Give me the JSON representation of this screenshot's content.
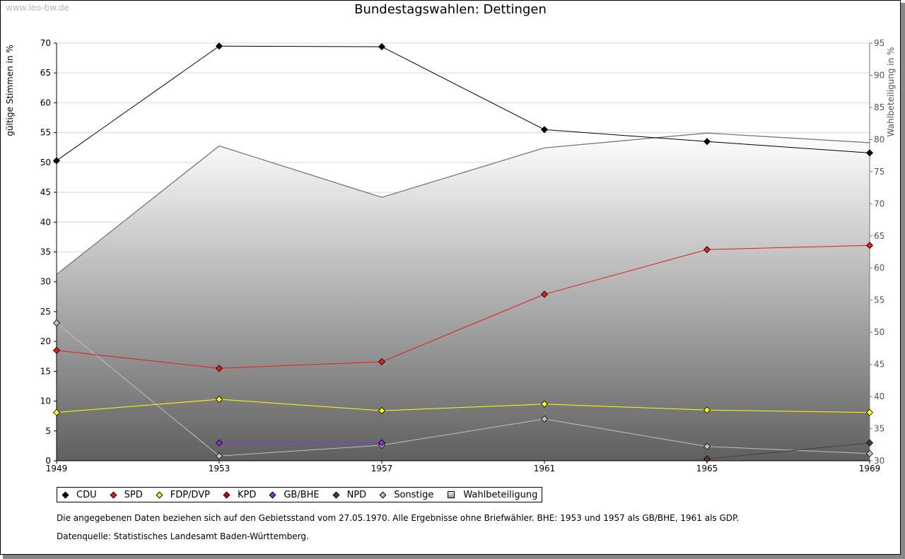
{
  "watermark": "www.leo-bw.de",
  "chart_data": {
    "type": "line",
    "title": "Bundestagswahlen: Dettingen",
    "ylabel": "gültige Stimmen in %",
    "y2label": "Wahlbeteiligung in %",
    "categories": [
      "1949",
      "1953",
      "1957",
      "1961",
      "1965",
      "1969"
    ],
    "ylim": [
      0,
      70
    ],
    "yticks": [
      0,
      5,
      10,
      15,
      20,
      25,
      30,
      35,
      40,
      45,
      50,
      55,
      60,
      65,
      70
    ],
    "y2lim": [
      30,
      95
    ],
    "y2ticks": [
      30,
      35,
      40,
      45,
      50,
      55,
      60,
      65,
      70,
      75,
      80,
      85,
      90,
      95
    ],
    "series": [
      {
        "name": "CDU",
        "color": "#000000",
        "values": [
          50.3,
          69.5,
          69.4,
          55.5,
          53.5,
          51.6
        ]
      },
      {
        "name": "SPD",
        "color": "#e31b1b",
        "values": [
          18.5,
          15.5,
          16.6,
          27.9,
          35.4,
          36.1
        ]
      },
      {
        "name": "FDP/DVP",
        "color": "#ffff00",
        "values": [
          8.1,
          10.3,
          8.4,
          9.5,
          8.5,
          8.1
        ]
      },
      {
        "name": "KPD",
        "color": "#cc0000",
        "values": [
          null,
          null,
          null,
          null,
          null,
          null
        ]
      },
      {
        "name": "GB/BHE",
        "color": "#8a2be2",
        "values": [
          null,
          3.0,
          3.0,
          null,
          null,
          null
        ]
      },
      {
        "name": "NPD",
        "color": "#5a3a2a",
        "values": [
          null,
          null,
          null,
          null,
          0.3,
          3.0
        ]
      },
      {
        "name": "Sonstige",
        "color": "#c0c0c0",
        "values": [
          23.1,
          0.8,
          2.6,
          7.0,
          2.4,
          1.2
        ]
      }
    ],
    "turnout": {
      "name": "Wahlbeteiligung",
      "values": [
        59.0,
        79.0,
        71.0,
        78.7,
        81.0,
        79.5
      ]
    },
    "legend_position": "bottom"
  },
  "notes": {
    "line1": "Die angegebenen Daten beziehen sich auf den Gebietsstand vom 27.05.1970. Alle Ergebnisse ohne Briefwähler. BHE: 1953 und 1957 als GB/BHE, 1961 als GDP.",
    "line2": "Datenquelle: Statistisches Landesamt Baden-Württemberg."
  }
}
